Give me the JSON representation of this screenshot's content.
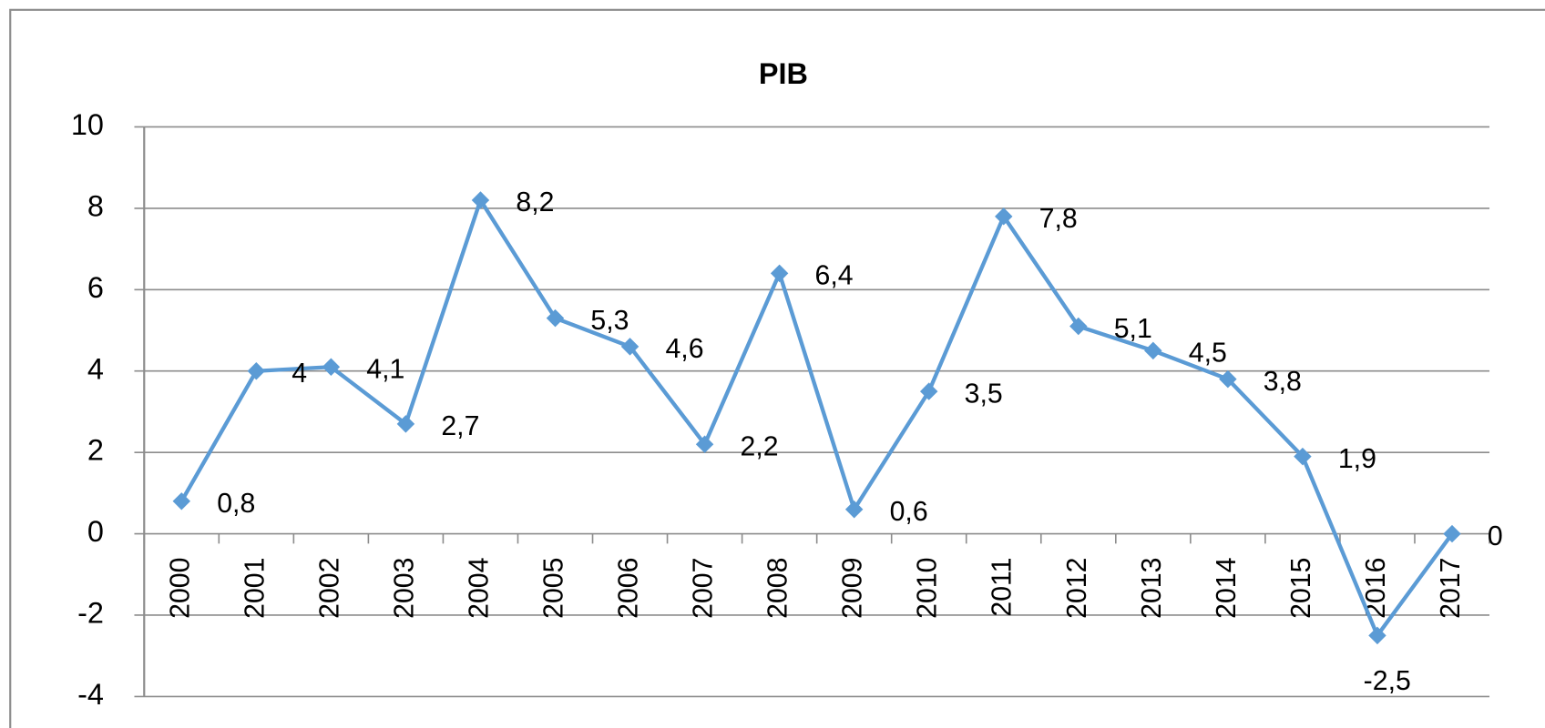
{
  "chart_data": {
    "type": "line",
    "title": "PIB",
    "categories": [
      "2000",
      "2001",
      "2002",
      "2003",
      "2004",
      "2005",
      "2006",
      "2007",
      "2008",
      "2009",
      "2010",
      "2011",
      "2012",
      "2013",
      "2014",
      "2015",
      "2016",
      "2017"
    ],
    "values": [
      0.8,
      4,
      4.1,
      2.7,
      8.2,
      5.3,
      4.6,
      2.2,
      6.4,
      0.6,
      3.5,
      7.8,
      5.1,
      4.5,
      3.8,
      1.9,
      -2.5,
      0
    ],
    "value_labels": [
      "0,8",
      "4",
      "4,1",
      "2,7",
      "8,2",
      "5,3",
      "4,6",
      "2,2",
      "6,4",
      "0,6",
      "3,5",
      "7,8",
      "5,1",
      "4,5",
      "3,8",
      "1,9",
      "-2,5",
      "0"
    ],
    "color": "#5b9bd5",
    "ylim": [
      -4,
      10
    ],
    "yticks": [
      -4,
      -2,
      0,
      2,
      4,
      6,
      8,
      10
    ],
    "grid": true
  }
}
